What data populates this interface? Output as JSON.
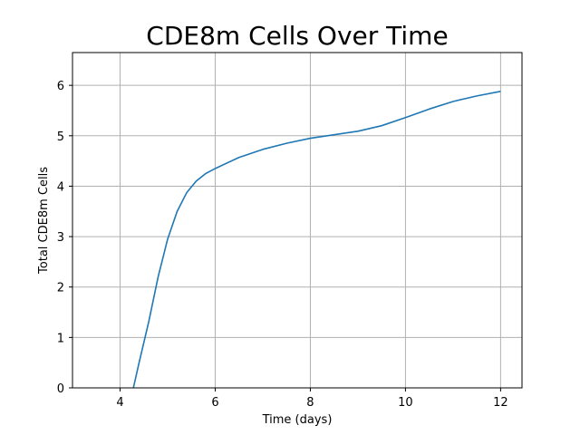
{
  "chart_data": {
    "type": "line",
    "title": "CDE8m Cells Over Time",
    "xlabel": "Time (days)",
    "ylabel": "Total CDE8m Cells",
    "xlim": [
      3.0,
      12.45
    ],
    "ylim": [
      0,
      6.65
    ],
    "xticks": [
      4,
      6,
      8,
      10,
      12
    ],
    "yticks": [
      0,
      1,
      2,
      3,
      4,
      5,
      6
    ],
    "grid": true,
    "series": [
      {
        "color": "#1f77b4",
        "x": [
          4.28,
          4.4,
          4.6,
          4.8,
          5.0,
          5.2,
          5.4,
          5.6,
          5.8,
          6.0,
          6.5,
          7.0,
          7.5,
          8.0,
          8.5,
          9.0,
          9.5,
          10.0,
          10.5,
          11.0,
          11.5,
          12.0
        ],
        "y": [
          0.0,
          0.5,
          1.3,
          2.2,
          2.95,
          3.5,
          3.87,
          4.1,
          4.25,
          4.35,
          4.57,
          4.73,
          4.85,
          4.95,
          5.02,
          5.09,
          5.2,
          5.36,
          5.53,
          5.68,
          5.79,
          5.88
        ]
      }
    ]
  }
}
